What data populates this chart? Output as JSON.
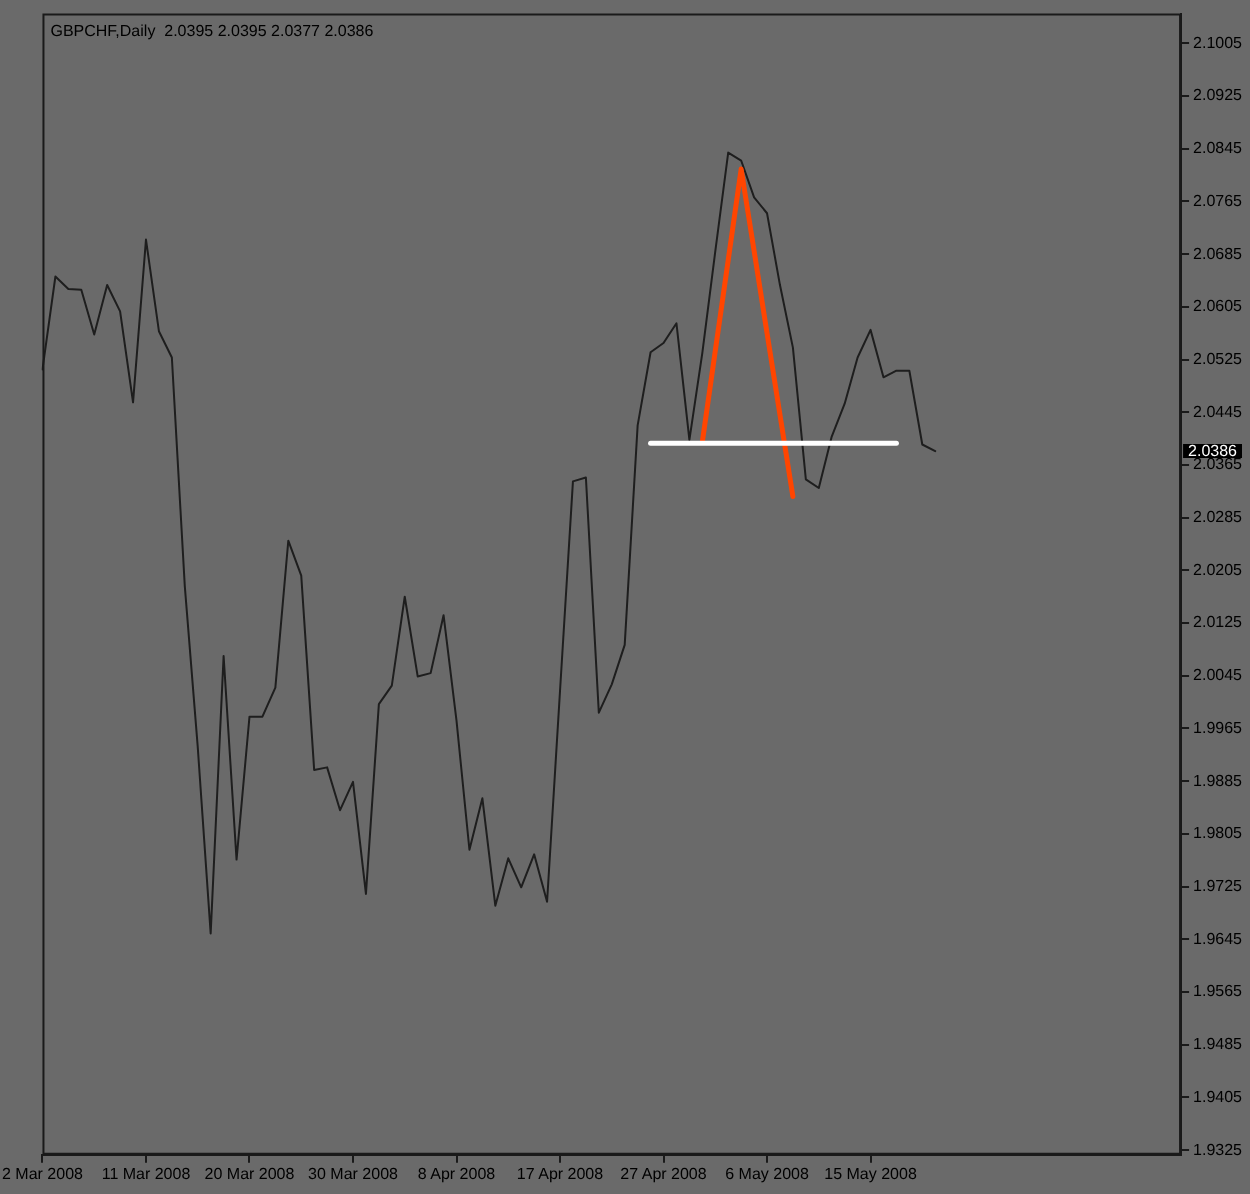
{
  "chart_data": {
    "type": "line",
    "title": "GBPCHF,Daily  2.0395 2.0395 2.0377 2.0386",
    "categories": [
      "2 Mar 2008",
      null,
      null,
      null,
      null,
      null,
      null,
      null,
      "11 Mar 2008",
      null,
      null,
      null,
      null,
      null,
      null,
      null,
      "20 Mar 2008",
      null,
      null,
      null,
      null,
      null,
      null,
      null,
      "30 Mar 2008",
      null,
      null,
      null,
      null,
      null,
      null,
      null,
      "8 Apr 2008",
      null,
      null,
      null,
      null,
      null,
      null,
      null,
      "17 Apr 2008",
      null,
      null,
      null,
      null,
      null,
      null,
      null,
      "27 Apr 2008",
      null,
      null,
      null,
      null,
      null,
      null,
      null,
      "6 May 2008",
      null,
      null,
      null,
      null,
      null,
      null,
      null,
      "15 May 2008",
      null,
      null,
      null,
      null,
      null,
      null,
      null,
      null,
      null,
      null,
      null,
      null,
      null,
      null,
      null,
      null,
      null,
      null,
      null,
      null,
      null,
      null,
      null,
      null
    ],
    "series": [
      {
        "color": "#1e1e1e",
        "values": [
          2.051,
          2.0651,
          2.0632,
          2.0631,
          2.0563,
          2.0638,
          2.0598,
          2.046,
          2.0707,
          2.0568,
          2.0528,
          2.0181,
          1.9937,
          1.9654,
          2.0075,
          1.9766,
          1.9983,
          1.9983,
          2.0027,
          2.025,
          2.0197,
          1.9902,
          1.9906,
          1.9841,
          1.9884,
          1.9714,
          2.0002,
          2.003,
          2.0165,
          2.0044,
          2.0049,
          2.0137,
          1.9977,
          1.9781,
          1.9859,
          1.9696,
          1.9768,
          1.9724,
          1.9774,
          1.9702,
          2.0022,
          2.034,
          2.0346,
          1.9989,
          2.0032,
          2.0092,
          2.0425,
          2.0536,
          2.055,
          2.058,
          2.0403,
          2.0535,
          2.0689,
          2.0839,
          2.0827,
          2.0771,
          2.0747,
          2.0638,
          2.0543,
          2.0343,
          2.033,
          2.0408,
          2.0458,
          2.0528,
          2.057,
          2.0498,
          2.0508,
          2.0508,
          2.0396,
          2.0386,
          null,
          null,
          null,
          null,
          null,
          null,
          null,
          null,
          null,
          null,
          null,
          null,
          null,
          null,
          null,
          null,
          null,
          null,
          null
        ]
      },
      {
        "color": "#ff4500",
        "values": [
          null,
          null,
          null,
          null,
          null,
          null,
          null,
          null,
          null,
          null,
          null,
          null,
          null,
          null,
          null,
          null,
          null,
          null,
          null,
          null,
          null,
          null,
          null,
          null,
          null,
          null,
          null,
          null,
          null,
          null,
          null,
          null,
          null,
          null,
          null,
          null,
          null,
          null,
          null,
          null,
          null,
          null,
          null,
          null,
          null,
          null,
          null,
          null,
          null,
          null,
          null,
          2.04,
          2.0538,
          2.0676,
          2.0814,
          2.069,
          2.0565,
          2.0441,
          2.0317,
          null,
          null,
          null,
          null,
          null,
          null,
          null,
          null,
          null,
          null,
          null,
          null,
          null,
          null,
          null,
          null,
          null,
          null,
          null,
          null,
          null,
          null,
          null,
          null,
          null,
          null,
          null,
          null,
          null,
          null
        ]
      },
      {
        "color": "#ffffff",
        "values": [
          null,
          null,
          null,
          null,
          null,
          null,
          null,
          null,
          null,
          null,
          null,
          null,
          null,
          null,
          null,
          null,
          null,
          null,
          null,
          null,
          null,
          null,
          null,
          null,
          null,
          null,
          null,
          null,
          null,
          null,
          null,
          null,
          null,
          null,
          null,
          null,
          null,
          null,
          null,
          null,
          null,
          null,
          null,
          null,
          null,
          null,
          null,
          2.0398,
          2.0398,
          2.0398,
          2.0398,
          2.0398,
          2.0398,
          2.0398,
          2.0398,
          2.0398,
          2.0398,
          2.0398,
          2.0398,
          2.0398,
          2.0398,
          2.0398,
          2.0398,
          2.0398,
          2.0398,
          2.0398,
          2.0398,
          null,
          null,
          null,
          null,
          null,
          null,
          null,
          null,
          null,
          null,
          null,
          null,
          null,
          null,
          null,
          null,
          null,
          null,
          null,
          null,
          null,
          null
        ]
      }
    ],
    "ylim": [
      1.9318,
      2.105
    ],
    "yticks": [
      1.9325,
      1.9405,
      1.9485,
      1.9565,
      1.9645,
      1.9725,
      1.9805,
      1.9885,
      1.9965,
      2.0045,
      2.0125,
      2.0205,
      2.0285,
      2.0365,
      2.0445,
      2.0525,
      2.0605,
      2.0685,
      2.0765,
      2.0845,
      2.0925,
      2.1005
    ],
    "annotations": [
      "2.0386"
    ],
    "marker": "none",
    "line_style": "solid"
  }
}
